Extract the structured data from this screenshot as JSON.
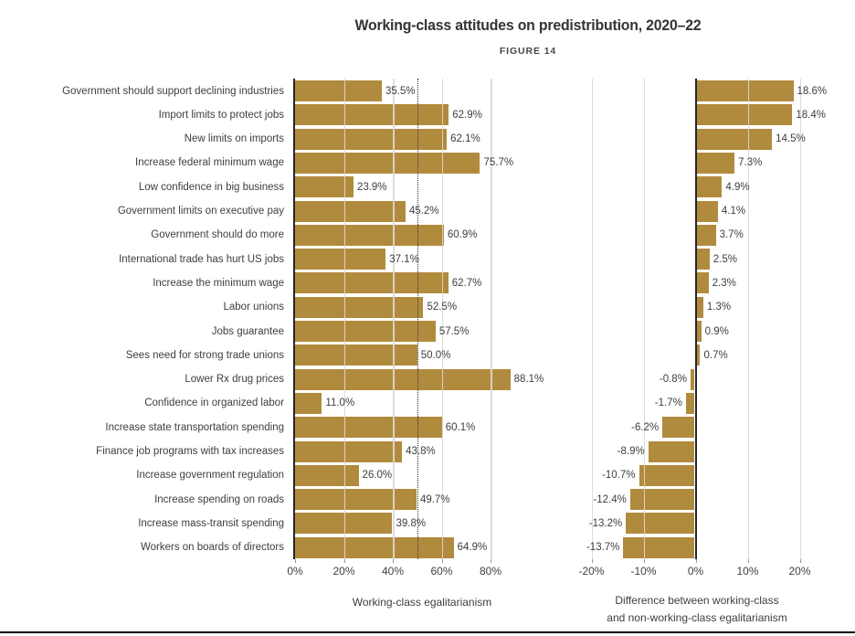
{
  "title": "Working-class attitudes on predistribution, 2020–22",
  "figure_label": "FIGURE 14",
  "colors": {
    "bar": "#b18b3d",
    "text": "#3e3e3e",
    "grid": "#dbd8d1",
    "axis": "#262626",
    "reference_line": "#333333"
  },
  "left_panel": {
    "axis_label": "Working-class egalitarianism",
    "tick_labels": [
      "0%",
      "20%",
      "40%",
      "60%",
      "80%"
    ],
    "tick_values": [
      0,
      20,
      40,
      60,
      80
    ],
    "gridline_values": [
      20,
      40,
      60,
      80
    ],
    "reference_line_value": 50
  },
  "right_panel": {
    "axis_label_line1": "Difference between working-class",
    "axis_label_line2": "and non-working-class egalitarianism",
    "tick_labels": [
      "-20%",
      "-10%",
      "0%",
      "10%",
      "20%"
    ],
    "tick_values": [
      -20,
      -10,
      0,
      10,
      20
    ],
    "gridline_values": [
      -20,
      -10,
      10,
      20
    ]
  },
  "chart_data": {
    "type": "bar",
    "orientation": "horizontal",
    "title": "Working-class attitudes on predistribution, 2020–22",
    "subtitle": "FIGURE 14",
    "grid": true,
    "reference_line": {
      "panel": "left",
      "value": 50,
      "style": "dotted"
    },
    "categories": [
      "Government should support declining industries",
      "Import limits to protect jobs",
      "New limits on imports",
      "Increase federal minimum wage",
      "Low confidence in big business",
      "Government limits on executive pay",
      "Government should do more",
      "International trade has hurt US jobs",
      "Increase the minimum wage",
      "Labor unions",
      "Jobs guarantee",
      "Sees need for strong trade unions",
      "Lower Rx drug prices",
      "Confidence in organized labor",
      "Increase state transportation spending",
      "Finance job programs with tax increases",
      "Increase government regulation",
      "Increase spending on roads",
      "Increase mass-transit spending",
      "Workers on boards of directors"
    ],
    "series": [
      {
        "name": "Working-class egalitarianism",
        "axis_range": [
          0,
          80
        ],
        "values": [
          35.5,
          62.9,
          62.1,
          75.7,
          23.9,
          45.2,
          60.9,
          37.1,
          62.7,
          52.5,
          57.5,
          50.0,
          88.1,
          11.0,
          60.1,
          43.8,
          26.0,
          49.7,
          39.8,
          64.9
        ],
        "value_labels": [
          "35.5%",
          "62.9%",
          "62.1%",
          "75.7%",
          "23.9%",
          "45.2%",
          "60.9%",
          "37.1%",
          "62.7%",
          "52.5%",
          "57.5%",
          "50.0%",
          "88.1%",
          "11.0%",
          "60.1%",
          "43.8%",
          "26.0%",
          "49.7%",
          "39.8%",
          "64.9%"
        ]
      },
      {
        "name": "Difference between working-class and non-working-class egalitarianism",
        "axis_range": [
          -20,
          20
        ],
        "values": [
          18.6,
          18.4,
          14.5,
          7.3,
          4.9,
          4.1,
          3.7,
          2.5,
          2.3,
          1.3,
          0.9,
          0.7,
          -0.8,
          -1.7,
          -6.2,
          -8.9,
          -10.7,
          -12.4,
          -13.2,
          -13.7
        ],
        "value_labels": [
          "18.6%",
          "18.4%",
          "14.5%",
          "7.3%",
          "4.9%",
          "4.1%",
          "3.7%",
          "2.5%",
          "2.3%",
          "1.3%",
          "0.9%",
          "0.7%",
          "-0.8%",
          "-1.7%",
          "-6.2%",
          "-8.9%",
          "-10.7%",
          "-12.4%",
          "-13.2%",
          "-13.7%"
        ]
      }
    ]
  }
}
